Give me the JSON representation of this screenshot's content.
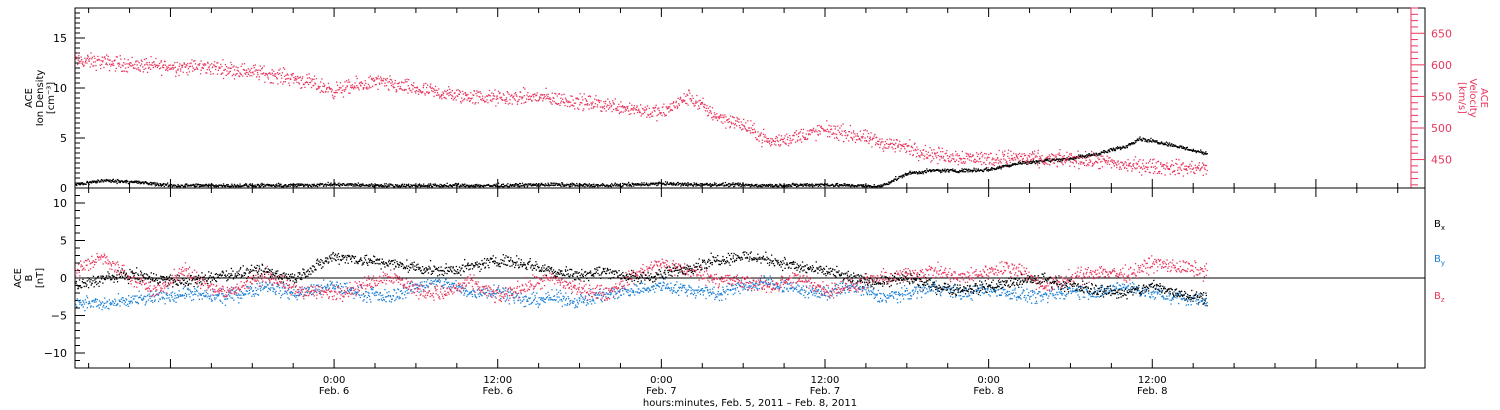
{
  "colors": {
    "axis": "#000000",
    "velocity": "#e8365d",
    "bx": "#000000",
    "by": "#1a7fd4",
    "bz": "#e8365d"
  },
  "time_axis": {
    "xlabel": "hours:minutes, Feb.  5, 2011 – Feb.  8, 2011",
    "range_hours": [
      -19,
      80
    ],
    "ticks": [
      {
        "hour": 0,
        "time": "0:00",
        "date": "Feb. 6"
      },
      {
        "hour": 12,
        "time": "12:00",
        "date": "Feb. 6"
      },
      {
        "hour": 24,
        "time": "0:00",
        "date": "Feb. 7"
      },
      {
        "hour": 36,
        "time": "12:00",
        "date": "Feb. 7"
      },
      {
        "hour": 48,
        "time": "0:00",
        "date": "Feb. 8"
      },
      {
        "hour": 60,
        "time": "12:00",
        "date": "Feb. 8"
      }
    ]
  },
  "density_panel": {
    "ylabel": [
      "ACE",
      "Ion Density",
      "[cm⁻³]"
    ],
    "left_range": [
      0,
      18
    ],
    "left_ticks": [
      "0",
      "5",
      "10",
      "15"
    ],
    "right_ylabel": [
      "ACE",
      "Velocity",
      "[km/s]"
    ],
    "right_range": [
      405,
      690
    ],
    "right_ticks": [
      "450",
      "500",
      "550",
      "600",
      "650"
    ]
  },
  "field_panel": {
    "ylabel": [
      "ACE",
      "B",
      "[nT]"
    ],
    "range": [
      -12,
      12
    ],
    "ticks": [
      "−10",
      "−5",
      "0",
      "5",
      "10"
    ],
    "legend": [
      "Bx",
      "By",
      "Bz"
    ]
  },
  "chart_data": [
    {
      "type": "scatter",
      "title": "",
      "xlabel": "hours:minutes, Feb.  5, 2011 – Feb.  8, 2011",
      "x_units": "hours from 2011-02-06 00:00",
      "ylabel": "ACE Ion Density [cm⁻³]",
      "right_ylabel": "ACE Velocity [km/s]",
      "ylim": [
        0,
        18
      ],
      "right_ylim": [
        405,
        690
      ],
      "series": [
        {
          "axis": "left",
          "color": "#000000",
          "x": [
            -19,
            -17,
            -15,
            -12,
            -8,
            -4,
            0,
            4,
            8,
            12,
            16,
            20,
            22,
            24,
            26,
            28,
            32,
            36,
            40,
            42,
            44,
            46,
            48,
            50,
            52,
            54,
            56,
            58,
            59,
            61,
            63,
            64
          ],
          "y": [
            0.4,
            0.8,
            0.7,
            0.3,
            0.3,
            0.3,
            0.4,
            0.3,
            0.3,
            0.3,
            0.4,
            0.3,
            0.4,
            0.5,
            0.4,
            0.4,
            0.3,
            0.4,
            0.2,
            1.5,
            1.8,
            1.8,
            1.9,
            2.5,
            2.8,
            3.0,
            3.5,
            4.2,
            5.0,
            4.5,
            3.8,
            3.5
          ]
        },
        {
          "axis": "right",
          "color": "#e8365d",
          "x": [
            -19,
            -17,
            -14,
            -12,
            -9,
            -6,
            -3,
            0,
            3,
            6,
            9,
            12,
            15,
            18,
            21,
            24,
            25,
            26,
            28,
            30,
            32,
            34,
            36,
            38,
            40,
            42,
            44,
            46,
            48,
            50,
            52,
            54,
            56,
            58,
            60,
            62,
            64
          ],
          "y": [
            608,
            605,
            600,
            598,
            597,
            590,
            580,
            560,
            574,
            562,
            552,
            548,
            550,
            542,
            535,
            524,
            538,
            550,
            520,
            505,
            478,
            488,
            498,
            490,
            478,
            470,
            458,
            455,
            452,
            455,
            450,
            452,
            448,
            442,
            440,
            438,
            436
          ]
        }
      ]
    },
    {
      "type": "scatter",
      "title": "",
      "xlabel": "hours:minutes, Feb.  5, 2011 – Feb.  8, 2011",
      "x_units": "hours from 2011-02-06 00:00",
      "ylabel": "ACE B [nT]",
      "ylim": [
        -12,
        12
      ],
      "series": [
        {
          "name": "Bx",
          "color": "#000000",
          "x": [
            -19,
            -17,
            -15,
            -13,
            -11,
            -8,
            -5,
            -3,
            0,
            2,
            4,
            6,
            8,
            10,
            12,
            14,
            16,
            18,
            20,
            22,
            24,
            26,
            28,
            30,
            32,
            34,
            36,
            38,
            40,
            42,
            44,
            46,
            48,
            50,
            52,
            54,
            56,
            58,
            60,
            62,
            64
          ],
          "y": [
            -1.0,
            0.0,
            0.5,
            0.0,
            -0.5,
            0.5,
            1.0,
            0.0,
            3.0,
            2.5,
            2.0,
            1.5,
            1.0,
            1.5,
            2.5,
            2.0,
            1.0,
            0.5,
            1.0,
            0.0,
            0.5,
            1.5,
            2.5,
            3.0,
            2.5,
            1.5,
            1.0,
            0.0,
            -0.5,
            0.0,
            -1.0,
            -1.5,
            -1.0,
            -0.5,
            0.0,
            -1.0,
            -1.5,
            -2.0,
            -1.0,
            -2.0,
            -2.5
          ]
        },
        {
          "name": "By",
          "color": "#1a7fd4",
          "x": [
            -19,
            -17,
            -15,
            -13,
            -11,
            -8,
            -5,
            -3,
            0,
            2,
            4,
            6,
            8,
            10,
            12,
            14,
            16,
            18,
            20,
            22,
            24,
            26,
            28,
            30,
            32,
            34,
            36,
            38,
            40,
            42,
            44,
            46,
            48,
            50,
            52,
            54,
            56,
            58,
            60,
            62,
            64
          ],
          "y": [
            -3.0,
            -3.5,
            -3.0,
            -2.5,
            -2.0,
            -2.5,
            -1.0,
            -2.0,
            -1.0,
            -2.0,
            -2.5,
            -1.0,
            -0.5,
            -2.0,
            -1.5,
            -3.0,
            -2.5,
            -3.0,
            -2.0,
            -1.5,
            -1.0,
            -1.5,
            -2.0,
            -1.0,
            -0.5,
            -1.5,
            -2.0,
            -1.0,
            -2.5,
            -2.0,
            -1.0,
            -2.0,
            -1.5,
            -2.0,
            -2.5,
            -1.5,
            -2.0,
            -1.0,
            -2.0,
            -2.5,
            -3.0
          ]
        },
        {
          "name": "Bz",
          "color": "#e8365d",
          "x": [
            -19,
            -17,
            -15,
            -13,
            -11,
            -8,
            -5,
            -3,
            0,
            2,
            4,
            6,
            8,
            10,
            12,
            14,
            16,
            18,
            20,
            22,
            24,
            26,
            28,
            30,
            32,
            34,
            36,
            38,
            40,
            42,
            44,
            46,
            48,
            50,
            52,
            54,
            56,
            58,
            60,
            62,
            64
          ],
          "y": [
            1.0,
            3.0,
            0.0,
            -1.5,
            1.0,
            -2.0,
            0.5,
            -1.5,
            -2.0,
            -1.0,
            0.5,
            -1.5,
            -2.0,
            -0.5,
            -2.5,
            -1.0,
            0.0,
            -1.5,
            -2.0,
            0.5,
            2.0,
            1.0,
            0.0,
            -0.5,
            -1.0,
            0.0,
            -1.5,
            -1.0,
            0.0,
            0.5,
            1.0,
            0.0,
            1.0,
            1.5,
            -1.0,
            0.0,
            1.0,
            0.5,
            2.0,
            1.5,
            1.0
          ]
        }
      ]
    }
  ]
}
